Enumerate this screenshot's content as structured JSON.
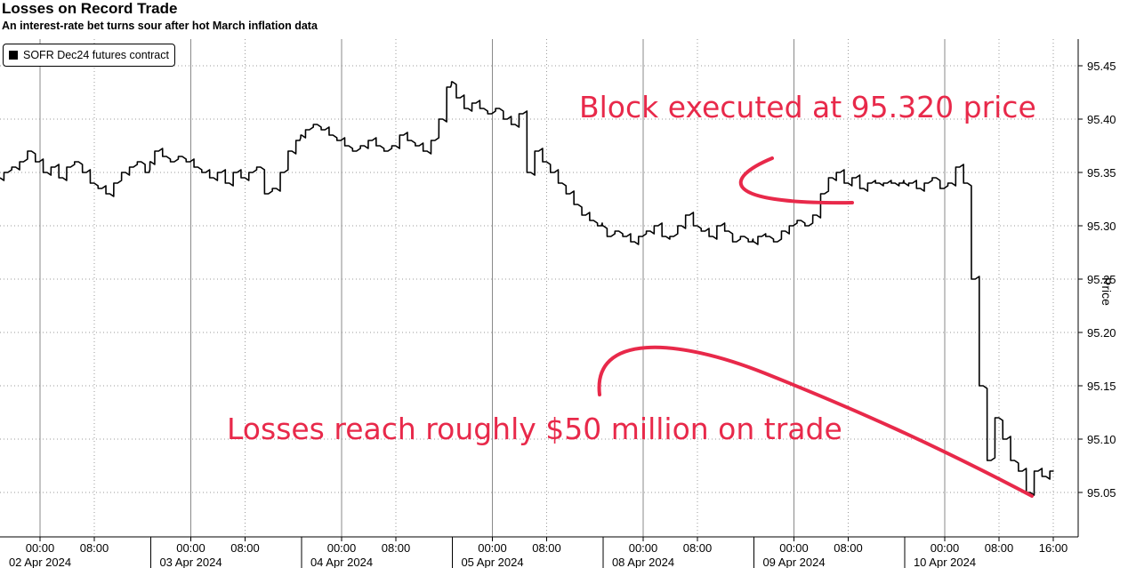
{
  "chart_data": {
    "type": "line",
    "title": "Losses on Record Trade",
    "subtitle": "An interest-rate bet turns sour after hot March inflation data",
    "ylabel": "Price",
    "ylim": [
      95.02,
      95.48
    ],
    "yticks": [
      "95.45",
      "95.40",
      "95.35",
      "95.30",
      "95.25",
      "95.20",
      "95.15",
      "95.10",
      "95.05"
    ],
    "x_ticks": [
      {
        "time": "00:00",
        "day": "02 Apr 2024"
      },
      {
        "time": "08:00",
        "day": ""
      },
      {
        "time": "00:00",
        "day": "03 Apr 2024"
      },
      {
        "time": "08:00",
        "day": ""
      },
      {
        "time": "00:00",
        "day": "04 Apr 2024"
      },
      {
        "time": "08:00",
        "day": ""
      },
      {
        "time": "00:00",
        "day": "05 Apr 2024"
      },
      {
        "time": "08:00",
        "day": ""
      },
      {
        "time": "00:00",
        "day": "08 Apr 2024"
      },
      {
        "time": "08:00",
        "day": ""
      },
      {
        "time": "00:00",
        "day": "09 Apr 2024"
      },
      {
        "time": "08:00",
        "day": ""
      },
      {
        "time": "00:00",
        "day": "10 Apr 2024"
      },
      {
        "time": "08:00",
        "day": ""
      },
      {
        "time": "16:00",
        "day": ""
      }
    ],
    "grid": true,
    "legend_position": "top-left",
    "series": [
      {
        "name": "SOFR Dec24 futures contract",
        "color": "#000000",
        "sessions": [
          {
            "day": "02 Apr 2024",
            "values": [
              95.345,
              95.35,
              95.355,
              95.36,
              95.37,
              95.36,
              95.35,
              95.355,
              95.345,
              95.355,
              95.36,
              95.35,
              95.34,
              95.335,
              95.33,
              95.34,
              95.35,
              95.355,
              95.36,
              95.35
            ]
          },
          {
            "day": "03 Apr 2024",
            "values": [
              95.36,
              95.37,
              95.365,
              95.36,
              95.365,
              95.36,
              95.355,
              95.35,
              95.345,
              95.35,
              95.34,
              95.35,
              95.345,
              95.35,
              95.355,
              95.33,
              95.335,
              95.35,
              95.37,
              95.38
            ]
          },
          {
            "day": "04 Apr 2024",
            "values": [
              95.385,
              95.39,
              95.395,
              95.39,
              95.385,
              95.38,
              95.375,
              95.37,
              95.375,
              95.38,
              95.375,
              95.37,
              95.375,
              95.385,
              95.38,
              95.375,
              95.37,
              95.38,
              95.4,
              95.43
            ]
          },
          {
            "day": "05 Apr 2024",
            "values": [
              95.435,
              95.42,
              95.41,
              95.415,
              95.41,
              95.405,
              95.41,
              95.4,
              95.395,
              95.405,
              95.35,
              95.37,
              95.36,
              95.35,
              95.34,
              95.33,
              95.32,
              95.31,
              95.305,
              95.3
            ]
          },
          {
            "day": "08 Apr 2024",
            "values": [
              95.3,
              95.29,
              95.295,
              95.29,
              95.285,
              95.29,
              95.295,
              95.3,
              95.29,
              95.29,
              95.3,
              95.31,
              95.3,
              95.295,
              95.29,
              95.3,
              95.295,
              95.285,
              95.29,
              95.285
            ]
          },
          {
            "day": "09 Apr 2024",
            "values": [
              95.285,
              95.29,
              95.29,
              95.285,
              95.295,
              95.3,
              95.305,
              95.3,
              95.31,
              95.33,
              95.345,
              95.35,
              95.34,
              95.345,
              95.335,
              95.34,
              95.34,
              95.34,
              95.34,
              95.34
            ]
          },
          {
            "day": "10 Apr 2024",
            "values": [
              95.34,
              95.34,
              95.335,
              95.34,
              95.345,
              95.335,
              95.34,
              95.355,
              95.34,
              95.25,
              95.15,
              95.08,
              95.12,
              95.1,
              95.08,
              95.07,
              95.05,
              95.07,
              95.065,
              95.07
            ]
          }
        ]
      }
    ],
    "annotations": [
      {
        "text": "Block executed at 95.320 price",
        "price": 95.32
      },
      {
        "text": "Losses reach roughly $50 million on trade"
      }
    ],
    "accent_color": "#e8294a"
  }
}
